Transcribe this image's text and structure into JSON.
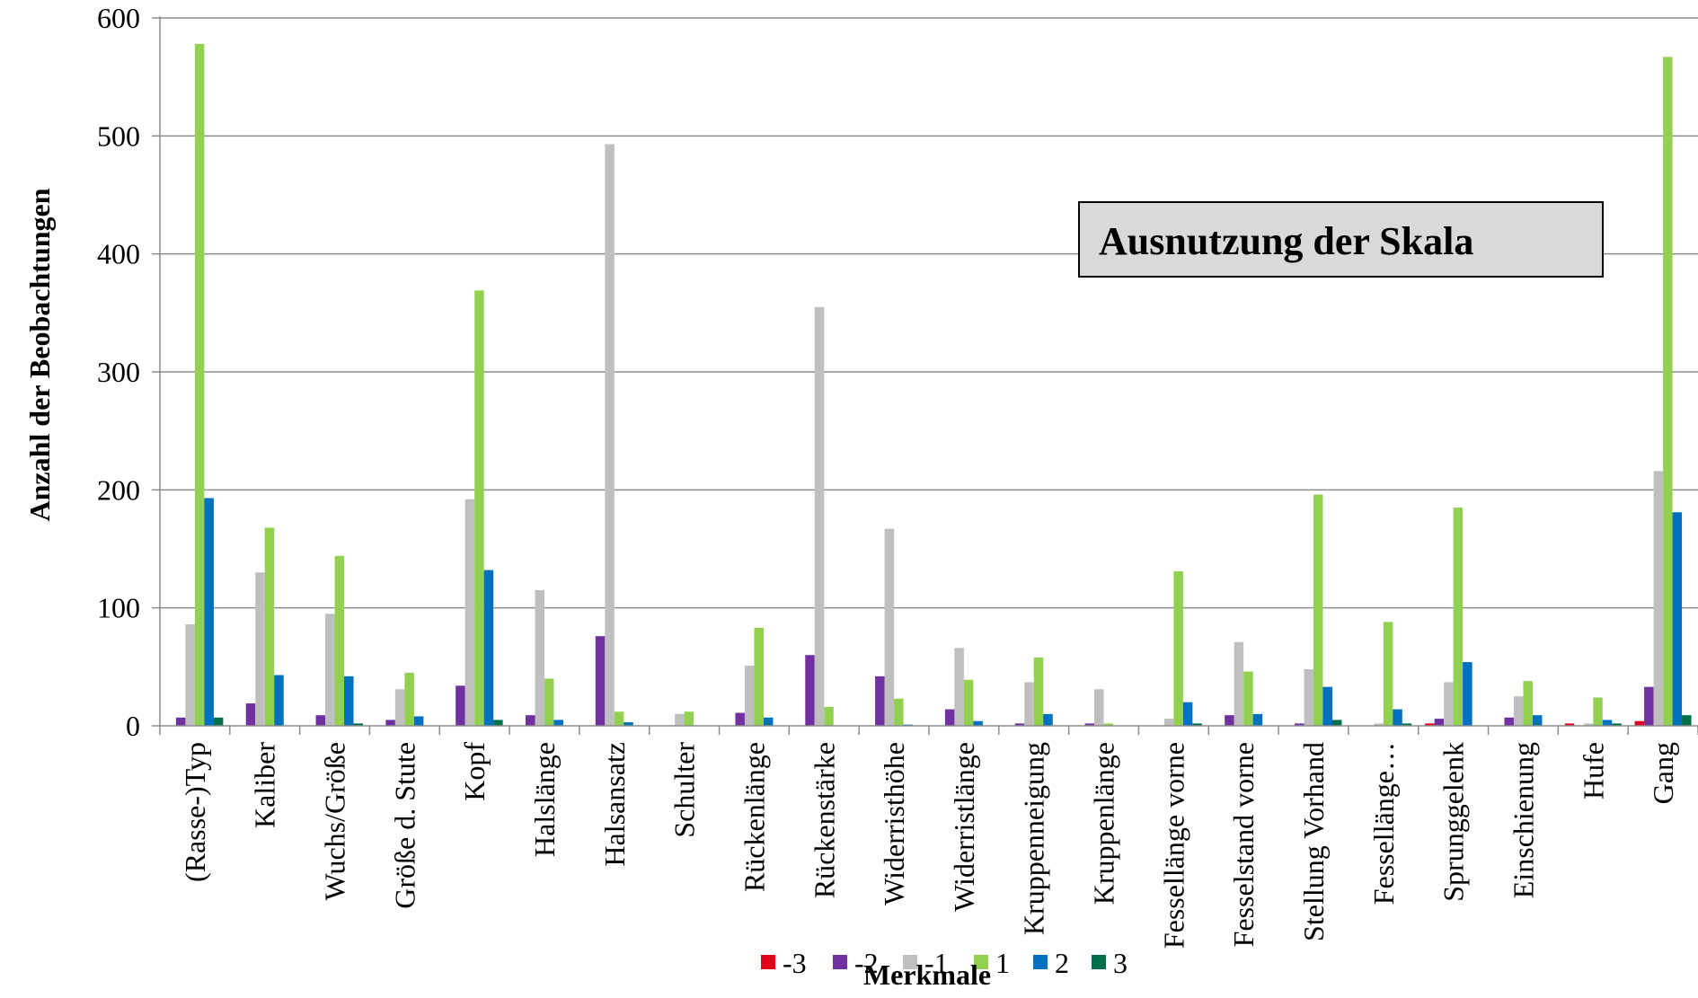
{
  "chart_data": {
    "type": "bar",
    "annotation": "Ausnutzung der Skala",
    "xlabel": "Merkmale",
    "ylabel": "Anzahl der Beobachtungen",
    "ylim": [
      0,
      600
    ],
    "yticks": [
      0,
      100,
      200,
      300,
      400,
      500,
      600
    ],
    "grid": true,
    "legend_position": "bottom",
    "categories": [
      "(Rasse-)Typ",
      "Kaliber",
      "Wuchs/Größe",
      "Größe d. Stute",
      "Kopf",
      "Halslänge",
      "Halsansatz",
      "Schulter",
      "Rückenlänge",
      "Rückenstärke",
      "Widerristhöhe",
      "Widerristlänge",
      "Kruppenneigung",
      "Kruppenlänge",
      "Fessellänge vorne",
      "Fesselstand vorne",
      "Stellung Vorhand",
      "Fessellänge…",
      "Sprunggelenk",
      "Einschienung",
      "Hufe",
      "Gang"
    ],
    "series": [
      {
        "name": "-3",
        "color": "#e3001b",
        "values": [
          0,
          0,
          0,
          0,
          0,
          0,
          0,
          0,
          0,
          0,
          0,
          0,
          0,
          0,
          0,
          0,
          0,
          0,
          2,
          0,
          2,
          4
        ]
      },
      {
        "name": "-2",
        "color": "#7030a0",
        "values": [
          7,
          19,
          9,
          5,
          34,
          9,
          76,
          0,
          11,
          60,
          42,
          14,
          2,
          2,
          0,
          9,
          2,
          0,
          6,
          7,
          0,
          33
        ]
      },
      {
        "name": "-1",
        "color": "#bfbfbf",
        "values": [
          86,
          130,
          95,
          31,
          192,
          115,
          493,
          10,
          51,
          355,
          167,
          66,
          37,
          31,
          6,
          71,
          48,
          2,
          37,
          25,
          2,
          216
        ]
      },
      {
        "name": "1",
        "color": "#92d050",
        "values": [
          578,
          168,
          144,
          45,
          369,
          40,
          12,
          12,
          83,
          16,
          23,
          39,
          58,
          2,
          131,
          46,
          196,
          88,
          185,
          38,
          24,
          567
        ]
      },
      {
        "name": "2",
        "color": "#0070c0",
        "values": [
          193,
          43,
          42,
          8,
          132,
          5,
          3,
          0,
          7,
          0,
          1,
          4,
          10,
          0,
          20,
          10,
          33,
          14,
          54,
          9,
          5,
          181
        ]
      },
      {
        "name": "3",
        "color": "#00704a",
        "values": [
          7,
          0,
          2,
          0,
          5,
          0,
          0,
          0,
          0,
          0,
          0,
          0,
          0,
          0,
          2,
          0,
          5,
          2,
          0,
          0,
          2,
          9
        ]
      }
    ]
  }
}
